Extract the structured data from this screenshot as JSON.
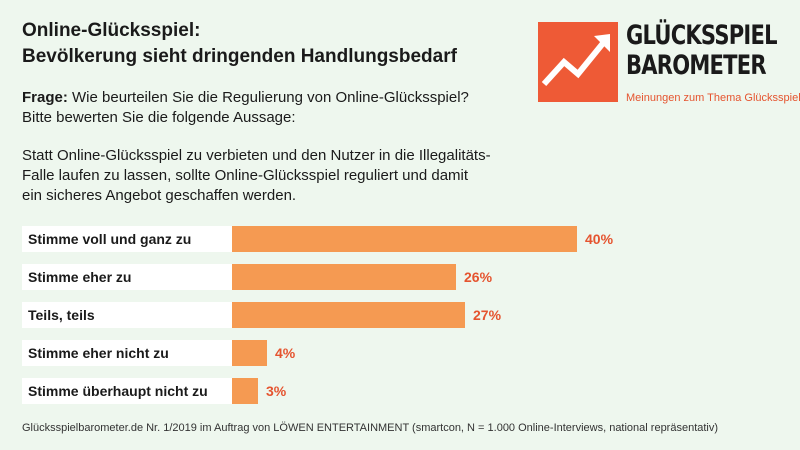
{
  "header": {
    "title_line1": "Online-Glücksspiel:",
    "title_line2": "Bevölkerung sieht dringenden Handlungsbedarf"
  },
  "question": {
    "label": "Frage:",
    "text": "Wie beurteilen Sie die Regulierung von Online-Glücksspiel?",
    "line2": "Bitte bewerten Sie die folgende Aussage:"
  },
  "statement": {
    "line1": "Statt Online-Glücksspiel zu verbieten und den Nutzer in die Illegalitäts-",
    "line2": "Falle laufen zu lassen, sollte Online-Glücksspiel reguliert und damit",
    "line3": "ein sicheres Angebot geschaffen werden."
  },
  "logo": {
    "line1": "GLÜCKSSPIEL",
    "line2": "BAROMETER",
    "tagline": "Meinungen zum Thema Glücksspiel",
    "accent_color": "#ee5a36"
  },
  "chart_data": {
    "type": "bar",
    "orientation": "horizontal",
    "categories": [
      "Stimme voll und ganz zu",
      "Stimme eher zu",
      "Teils, teils",
      "Stimme eher nicht zu",
      "Stimme überhaupt nicht zu"
    ],
    "values": [
      40,
      26,
      27,
      4,
      3
    ],
    "value_labels": [
      "40%",
      "26%",
      "27%",
      "4%",
      "3%"
    ],
    "unit": "%",
    "xlim": [
      0,
      40
    ],
    "bar_color": "#f59a52",
    "label_color": "#e5542f"
  },
  "footer": {
    "source": "Glücksspielbarometer.de Nr. 1/2019 im Auftrag von LÖWEN ENTERTAINMENT (smartcon, N = 1.000 Online-Interviews, national repräsentativ)"
  }
}
